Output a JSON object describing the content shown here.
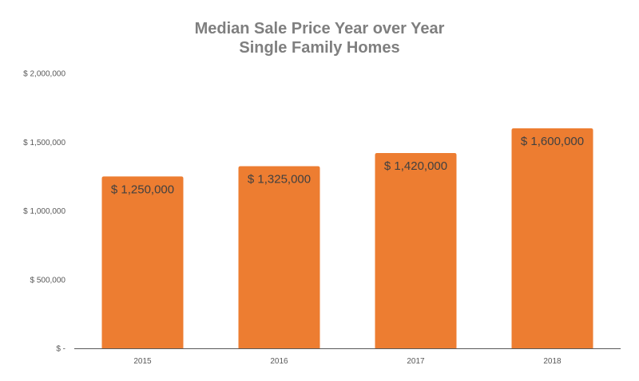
{
  "chart_data": {
    "type": "bar",
    "title": "Median Sale Price Year over Year",
    "subtitle": "Single Family Homes",
    "categories": [
      "2015",
      "2016",
      "2017",
      "2018"
    ],
    "values": [
      1250000,
      1325000,
      1420000,
      1600000
    ],
    "data_labels": [
      "$ 1,250,000",
      "$ 1,325,000",
      "$ 1,420,000",
      "$ 1,600,000"
    ],
    "y_ticks": [
      0,
      500000,
      1000000,
      1500000,
      2000000
    ],
    "y_tick_labels": [
      "$ -",
      "$ 500,000",
      "$ 1,000,000",
      "$ 1,500,000",
      "$ 2,000,000"
    ],
    "ylim": [
      0,
      2000000
    ],
    "xlabel": "",
    "ylabel": "",
    "grid": false,
    "legend": "none",
    "bar_color": "#ed7d31",
    "axis_color": "#595959"
  }
}
